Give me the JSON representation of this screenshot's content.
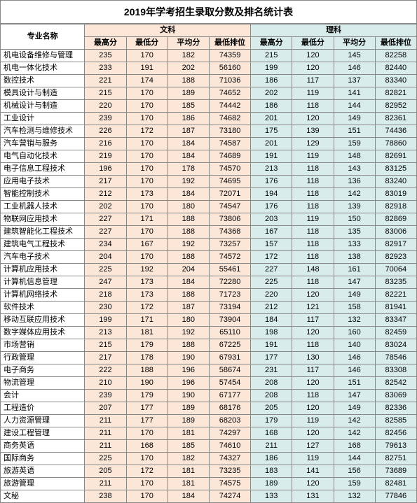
{
  "title": "2019年学考招生录取分数及排名统计表",
  "headers": {
    "major": "专业名称",
    "wenke": "文科",
    "like": "理科",
    "sub": [
      "最高分",
      "最低分",
      "平均分",
      "最低排位"
    ]
  },
  "colors": {
    "wenke_bg": "#fce6d8",
    "like_bg": "#d8ecec",
    "border": "#888888"
  },
  "rows": [
    {
      "major": "机电设备维修与管理",
      "w": [
        "235",
        "170",
        "182",
        "74359"
      ],
      "l": [
        "215",
        "120",
        "145",
        "82258"
      ]
    },
    {
      "major": "机电一体化技术",
      "w": [
        "233",
        "191",
        "202",
        "56160"
      ],
      "l": [
        "199",
        "120",
        "146",
        "82440"
      ]
    },
    {
      "major": "数控技术",
      "w": [
        "221",
        "174",
        "188",
        "71036"
      ],
      "l": [
        "186",
        "117",
        "137",
        "83340"
      ]
    },
    {
      "major": "模具设计与制造",
      "w": [
        "215",
        "170",
        "189",
        "74652"
      ],
      "l": [
        "202",
        "119",
        "141",
        "82821"
      ]
    },
    {
      "major": "机械设计与制造",
      "w": [
        "220",
        "170",
        "185",
        "74442"
      ],
      "l": [
        "186",
        "118",
        "144",
        "82952"
      ]
    },
    {
      "major": "工业设计",
      "w": [
        "239",
        "170",
        "186",
        "74682"
      ],
      "l": [
        "201",
        "120",
        "149",
        "82361"
      ]
    },
    {
      "major": "汽车检测与维修技术",
      "w": [
        "226",
        "172",
        "187",
        "73180"
      ],
      "l": [
        "175",
        "139",
        "151",
        "74436"
      ]
    },
    {
      "major": "汽车营销与服务",
      "w": [
        "216",
        "170",
        "184",
        "74587"
      ],
      "l": [
        "201",
        "129",
        "159",
        "78860"
      ]
    },
    {
      "major": "电气自动化技术",
      "w": [
        "219",
        "170",
        "184",
        "74689"
      ],
      "l": [
        "191",
        "119",
        "148",
        "82691"
      ]
    },
    {
      "major": "电子信息工程技术",
      "w": [
        "196",
        "170",
        "178",
        "74570"
      ],
      "l": [
        "213",
        "118",
        "143",
        "83125"
      ]
    },
    {
      "major": "应用电子技术",
      "w": [
        "217",
        "170",
        "192",
        "74695"
      ],
      "l": [
        "176",
        "118",
        "136",
        "83240"
      ]
    },
    {
      "major": "智能控制技术",
      "w": [
        "212",
        "173",
        "184",
        "72071"
      ],
      "l": [
        "194",
        "118",
        "142",
        "83019"
      ]
    },
    {
      "major": "工业机器人技术",
      "w": [
        "202",
        "170",
        "180",
        "74547"
      ],
      "l": [
        "176",
        "118",
        "139",
        "82918"
      ]
    },
    {
      "major": "物联网应用技术",
      "w": [
        "227",
        "171",
        "188",
        "73806"
      ],
      "l": [
        "203",
        "119",
        "150",
        "82869"
      ]
    },
    {
      "major": "建筑智能化工程技术",
      "w": [
        "227",
        "170",
        "188",
        "74368"
      ],
      "l": [
        "167",
        "118",
        "135",
        "83006"
      ]
    },
    {
      "major": "建筑电气工程技术",
      "w": [
        "234",
        "167",
        "192",
        "73257"
      ],
      "l": [
        "157",
        "118",
        "133",
        "82917"
      ]
    },
    {
      "major": "汽车电子技术",
      "w": [
        "204",
        "170",
        "188",
        "74572"
      ],
      "l": [
        "172",
        "118",
        "138",
        "82923"
      ]
    },
    {
      "major": "计算机应用技术",
      "w": [
        "225",
        "192",
        "204",
        "55461"
      ],
      "l": [
        "227",
        "148",
        "161",
        "70064"
      ]
    },
    {
      "major": "计算机信息管理",
      "w": [
        "247",
        "173",
        "184",
        "72280"
      ],
      "l": [
        "225",
        "118",
        "147",
        "83235"
      ]
    },
    {
      "major": "计算机网络技术",
      "w": [
        "218",
        "173",
        "188",
        "71723"
      ],
      "l": [
        "220",
        "120",
        "149",
        "82221"
      ]
    },
    {
      "major": "软件技术",
      "w": [
        "230",
        "172",
        "187",
        "73194"
      ],
      "l": [
        "212",
        "121",
        "158",
        "81941"
      ]
    },
    {
      "major": "移动互联应用技术",
      "w": [
        "199",
        "171",
        "180",
        "73904"
      ],
      "l": [
        "184",
        "117",
        "132",
        "83347"
      ]
    },
    {
      "major": "数字媒体应用技术",
      "w": [
        "213",
        "181",
        "192",
        "65110"
      ],
      "l": [
        "198",
        "120",
        "160",
        "82459"
      ]
    },
    {
      "major": "市场营销",
      "w": [
        "215",
        "179",
        "188",
        "67225"
      ],
      "l": [
        "191",
        "118",
        "140",
        "83024"
      ]
    },
    {
      "major": "行政管理",
      "w": [
        "217",
        "178",
        "190",
        "67931"
      ],
      "l": [
        "177",
        "130",
        "146",
        "78546"
      ]
    },
    {
      "major": "电子商务",
      "w": [
        "222",
        "188",
        "196",
        "58674"
      ],
      "l": [
        "231",
        "117",
        "146",
        "83308"
      ]
    },
    {
      "major": "物流管理",
      "w": [
        "210",
        "190",
        "196",
        "57454"
      ],
      "l": [
        "208",
        "120",
        "151",
        "82542"
      ]
    },
    {
      "major": "会计",
      "w": [
        "239",
        "179",
        "190",
        "67177"
      ],
      "l": [
        "208",
        "118",
        "147",
        "83069"
      ]
    },
    {
      "major": "工程造价",
      "w": [
        "207",
        "177",
        "189",
        "68176"
      ],
      "l": [
        "205",
        "120",
        "149",
        "82336"
      ]
    },
    {
      "major": "人力资源管理",
      "w": [
        "211",
        "177",
        "189",
        "68203"
      ],
      "l": [
        "179",
        "119",
        "142",
        "82585"
      ]
    },
    {
      "major": "建设工程管理",
      "w": [
        "211",
        "170",
        "181",
        "74297"
      ],
      "l": [
        "168",
        "120",
        "142",
        "82456"
      ]
    },
    {
      "major": "商务英语",
      "w": [
        "211",
        "168",
        "185",
        "74610"
      ],
      "l": [
        "211",
        "127",
        "168",
        "79613"
      ]
    },
    {
      "major": "国际商务",
      "w": [
        "225",
        "170",
        "182",
        "74327"
      ],
      "l": [
        "186",
        "119",
        "144",
        "82751"
      ]
    },
    {
      "major": "旅游英语",
      "w": [
        "205",
        "172",
        "181",
        "73235"
      ],
      "l": [
        "183",
        "141",
        "156",
        "73689"
      ]
    },
    {
      "major": "旅游管理",
      "w": [
        "211",
        "170",
        "181",
        "74575"
      ],
      "l": [
        "189",
        "120",
        "159",
        "82481"
      ]
    },
    {
      "major": "文秘",
      "w": [
        "238",
        "170",
        "184",
        "74274"
      ],
      "l": [
        "133",
        "131",
        "132",
        "77846"
      ]
    }
  ]
}
